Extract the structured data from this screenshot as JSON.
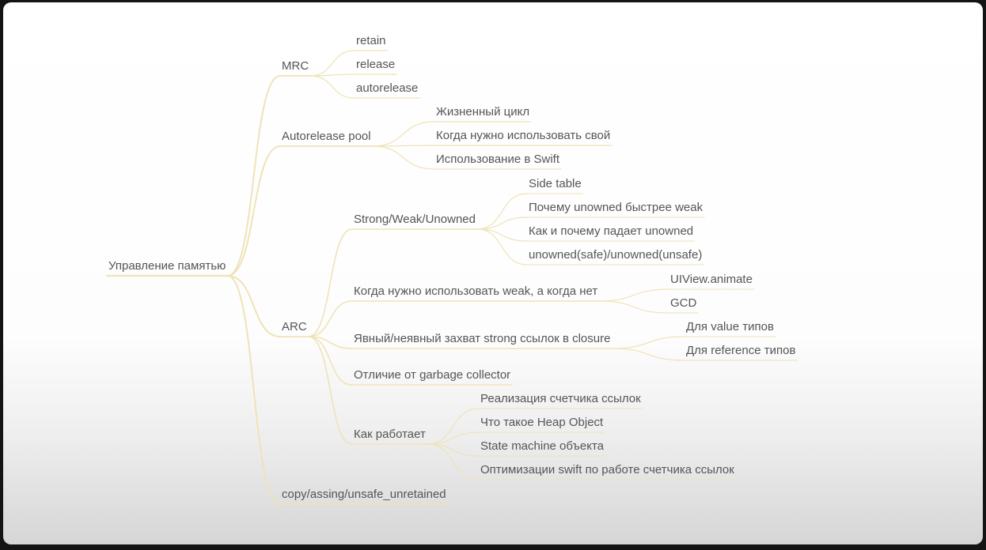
{
  "colors": {
    "branch": "#efe3b8",
    "text": "#555555"
  },
  "mindmap": {
    "root": "Управление памятью",
    "branches": [
      {
        "id": "mrc",
        "label": "MRC",
        "children": [
          "retain",
          "release",
          "autorelease"
        ]
      },
      {
        "id": "pool",
        "label": "Autorelease pool",
        "children": [
          "Жизненный цикл",
          "Когда нужно использовать свой",
          "Использование в Swift"
        ]
      },
      {
        "id": "arc",
        "label": "ARC",
        "children": [
          {
            "id": "swu",
            "label": "Strong/Weak/Unowned",
            "children": [
              "Side table",
              "Почему unowned быстрее weak",
              "Как и почему падает unowned",
              "unowned(safe)/unowned(unsafe)"
            ]
          },
          {
            "id": "whenweak",
            "label": "Когда нужно использовать weak, а когда нет",
            "children": [
              "UIView.animate",
              "GCD"
            ]
          },
          {
            "id": "capture",
            "label": "Явный/неявный захват strong ссылок в closure",
            "children": [
              "Для value типов",
              "Для reference типов"
            ]
          },
          {
            "id": "gc",
            "label": "Отличие от garbage collector",
            "children": []
          },
          {
            "id": "how",
            "label": "Как работает",
            "children": [
              "Реализация счетчика ссылок",
              "Что такое Heap Object",
              "State machine объекта",
              "Оптимизации swift по работе счетчика ссылок"
            ]
          }
        ]
      },
      {
        "id": "copy",
        "label": "copy/assing/unsafe_unretained",
        "children": []
      }
    ]
  }
}
